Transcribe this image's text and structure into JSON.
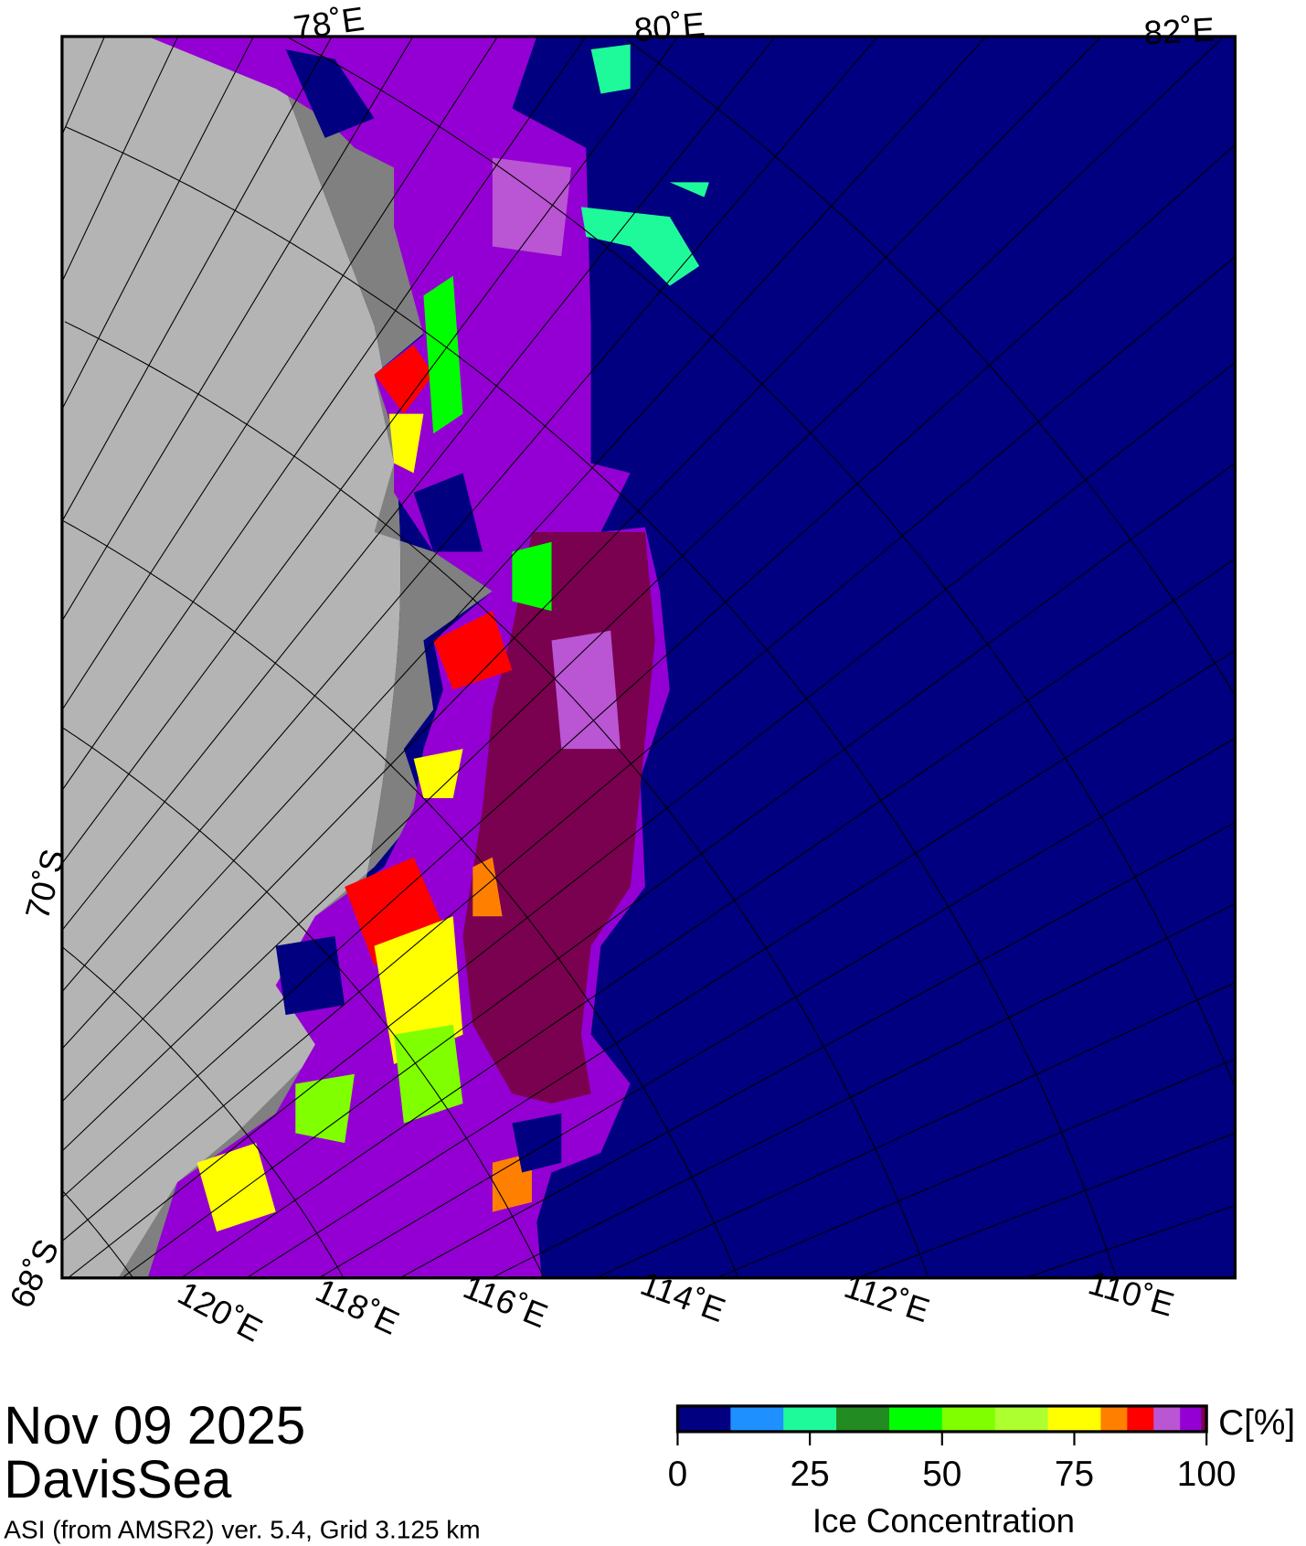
{
  "map": {
    "date": "Nov 09 2025",
    "region": "DavisSea",
    "source": "ASI (from AMSR2) ver. 5.4,  Grid 3.125 km",
    "lon_labels_top": [
      "78˚E",
      "80˚E",
      "82˚E"
    ],
    "lon_labels_bottom": [
      "120˚E",
      "118˚E",
      "116˚E",
      "114˚E",
      "112˚E",
      "110˚E"
    ],
    "lat_labels": [
      "70˚S",
      "68˚S"
    ],
    "colors": {
      "open_water": "#000080",
      "land": "#b4b4b4",
      "ice_shelf": "#808080",
      "max_ice": "#7a0050"
    }
  },
  "colorbar": {
    "unit": "C[%]",
    "title": "Ice Concentration",
    "ticks": [
      "0",
      "25",
      "50",
      "75",
      "100"
    ],
    "range": [
      0,
      100
    ],
    "bins": [
      {
        "from": 0,
        "to": 10,
        "color": "#000080"
      },
      {
        "from": 10,
        "to": 20,
        "color": "#1e90ff"
      },
      {
        "from": 20,
        "to": 30,
        "color": "#1efa9a"
      },
      {
        "from": 30,
        "to": 40,
        "color": "#228b22"
      },
      {
        "from": 40,
        "to": 50,
        "color": "#00ff00"
      },
      {
        "from": 50,
        "to": 60,
        "color": "#7fff00"
      },
      {
        "from": 60,
        "to": 70,
        "color": "#adff2f"
      },
      {
        "from": 70,
        "to": 80,
        "color": "#ffff00"
      },
      {
        "from": 80,
        "to": 85,
        "color": "#ff8000"
      },
      {
        "from": 85,
        "to": 90,
        "color": "#ff0000"
      },
      {
        "from": 90,
        "to": 95,
        "color": "#ba55d3"
      },
      {
        "from": 95,
        "to": 99,
        "color": "#9400d3"
      },
      {
        "from": 99,
        "to": 100,
        "color": "#7a0050"
      }
    ]
  }
}
